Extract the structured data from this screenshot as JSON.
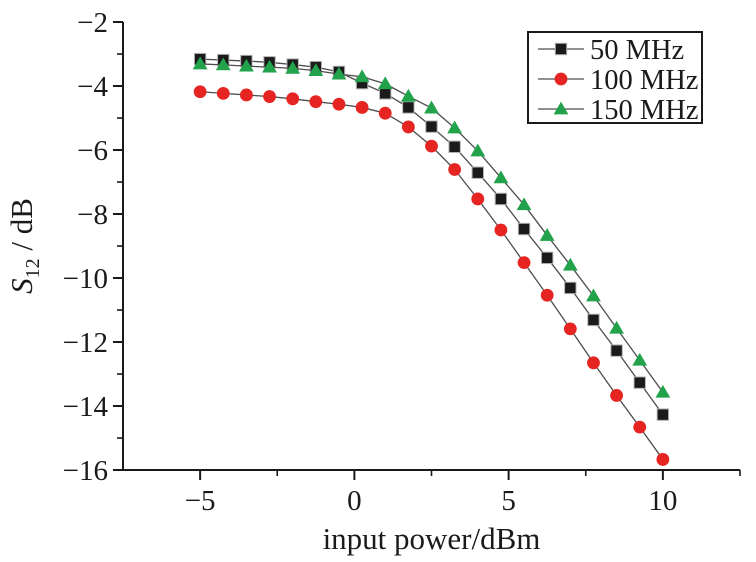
{
  "chart_data": {
    "type": "line",
    "title": "",
    "xlabel": "input power/dBm",
    "ylabel": {
      "variable": "S",
      "subscript": "12",
      "rest": " / dB"
    },
    "xlim": [
      -7.5,
      12.5
    ],
    "ylim": [
      -16,
      -2
    ],
    "grid": false,
    "x_major_ticks": [
      -5,
      0,
      5,
      10
    ],
    "x_minor_ticks": [
      -2.5,
      2.5,
      7.5,
      12.5
    ],
    "y_major_ticks": [
      -2,
      -4,
      -6,
      -8,
      -10,
      -12,
      -14,
      -16
    ],
    "y_minor_ticks": [
      -3,
      -5,
      -7,
      -9,
      -11,
      -13,
      -15
    ],
    "axis_color": "#1a1a1a",
    "line_color": "#4d4d4d",
    "x": [
      -5,
      -4.25,
      -3.5,
      -2.75,
      -2,
      -1.25,
      -0.5,
      0.25,
      1,
      1.75,
      2.5,
      3.25,
      4,
      4.75,
      5.5,
      6.25,
      7,
      7.75,
      8.5,
      9.25,
      10
    ],
    "series": [
      {
        "name": "50 MHz",
        "marker": "square",
        "color": "#1a1a1a",
        "values": [
          -3.16,
          -3.19,
          -3.22,
          -3.26,
          -3.33,
          -3.41,
          -3.56,
          -3.91,
          -4.23,
          -4.67,
          -5.27,
          -5.9,
          -6.71,
          -7.53,
          -8.47,
          -9.37,
          -10.31,
          -11.31,
          -12.27,
          -13.27,
          -14.27
        ]
      },
      {
        "name": "100 MHz",
        "marker": "circle",
        "color": "#e62421",
        "values": [
          -4.18,
          -4.23,
          -4.28,
          -4.33,
          -4.4,
          -4.49,
          -4.57,
          -4.67,
          -4.85,
          -5.28,
          -5.88,
          -6.61,
          -7.53,
          -8.5,
          -9.52,
          -10.54,
          -11.59,
          -12.65,
          -13.67,
          -14.66,
          -15.67
        ]
      },
      {
        "name": "150 MHz",
        "marker": "triangle",
        "color": "#21a24b",
        "values": [
          -3.31,
          -3.34,
          -3.38,
          -3.41,
          -3.45,
          -3.52,
          -3.63,
          -3.71,
          -3.93,
          -4.32,
          -4.69,
          -5.31,
          -6.03,
          -6.87,
          -7.71,
          -8.67,
          -9.6,
          -10.56,
          -11.57,
          -12.57,
          -13.57
        ]
      }
    ],
    "legend": {
      "position": "top-right",
      "entries": [
        "50 MHz",
        "100 MHz",
        "150 MHz"
      ]
    }
  }
}
